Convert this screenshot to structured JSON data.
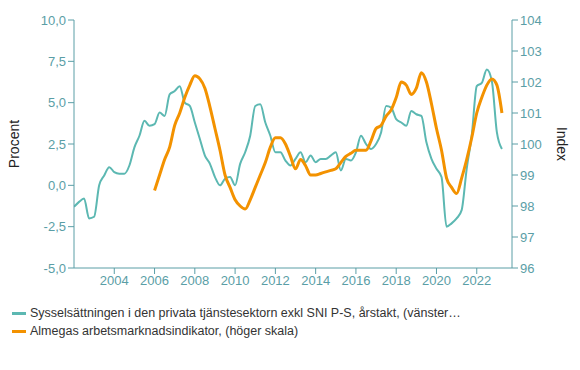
{
  "chart_data": {
    "type": "line",
    "ylabel": "Procent",
    "y2label": "Index",
    "x": [
      2002.0,
      2002.25,
      2002.5,
      2002.75,
      2003.0,
      2003.25,
      2003.5,
      2003.75,
      2004.0,
      2004.25,
      2004.5,
      2004.75,
      2005.0,
      2005.25,
      2005.5,
      2005.75,
      2006.0,
      2006.25,
      2006.5,
      2006.75,
      2007.0,
      2007.25,
      2007.5,
      2007.75,
      2008.0,
      2008.25,
      2008.5,
      2008.75,
      2009.0,
      2009.25,
      2009.5,
      2009.75,
      2010.0,
      2010.25,
      2010.5,
      2010.75,
      2011.0,
      2011.25,
      2011.5,
      2011.75,
      2012.0,
      2012.25,
      2012.5,
      2012.75,
      2013.0,
      2013.25,
      2013.5,
      2013.75,
      2014.0,
      2014.25,
      2014.5,
      2014.75,
      2015.0,
      2015.25,
      2015.5,
      2015.75,
      2016.0,
      2016.25,
      2016.5,
      2016.75,
      2017.0,
      2017.25,
      2017.5,
      2017.75,
      2018.0,
      2018.25,
      2018.5,
      2018.75,
      2019.0,
      2019.25,
      2019.5,
      2019.75,
      2020.0,
      2020.25,
      2020.5,
      2020.75,
      2021.0,
      2021.25,
      2021.5,
      2021.75,
      2022.0,
      2022.25,
      2022.5,
      2022.75,
      2023.0,
      2023.25
    ],
    "xlim": [
      2002,
      2023.75
    ],
    "xticks": [
      2004,
      2006,
      2008,
      2010,
      2012,
      2014,
      2016,
      2018,
      2020,
      2022
    ],
    "ylim": [
      -5,
      10
    ],
    "yticks": [
      {
        "value": -5,
        "label": "-5,0"
      },
      {
        "value": -2.5,
        "label": "-2,5"
      },
      {
        "value": 0,
        "label": "0,0"
      },
      {
        "value": 2.5,
        "label": "2,5"
      },
      {
        "value": 5,
        "label": "5,0"
      },
      {
        "value": 7.5,
        "label": "7,5"
      },
      {
        "value": 10,
        "label": "10,0"
      }
    ],
    "y2lim": [
      96,
      104
    ],
    "y2ticks": [
      96,
      97,
      98,
      99,
      100,
      101,
      102,
      103,
      104
    ],
    "grid": false,
    "legend": "bottom",
    "series": [
      {
        "name": "Sysselsättningen i den privata tjänstesektorn exkl SNI P-S, årstakt, (vänster…",
        "color": "#5cb8b2",
        "axis": "y",
        "values": [
          -1.3,
          -1.0,
          -0.8,
          -2.0,
          -1.9,
          0.0,
          0.6,
          1.1,
          0.8,
          0.7,
          0.7,
          1.2,
          2.3,
          3.0,
          3.9,
          3.6,
          3.7,
          4.4,
          4.2,
          5.5,
          5.7,
          6.0,
          5.0,
          4.8,
          3.8,
          2.8,
          1.8,
          1.3,
          0.5,
          0.0,
          0.4,
          0.5,
          0.0,
          1.3,
          2.0,
          3.0,
          4.8,
          4.9,
          3.8,
          3.0,
          2.0,
          2.0,
          1.5,
          1.2,
          1.6,
          2.0,
          1.4,
          1.8,
          1.4,
          1.6,
          1.6,
          1.8,
          2.0,
          0.9,
          1.6,
          1.5,
          2.0,
          3.0,
          2.5,
          2.2,
          2.5,
          3.2,
          4.8,
          4.7,
          4.0,
          3.8,
          3.6,
          4.5,
          4.3,
          4.2,
          2.6,
          1.6,
          1.0,
          0.5,
          -2.5,
          -2.3,
          -2.0,
          -1.5,
          1.0,
          3.0,
          6.0,
          6.2,
          7.0,
          6.3,
          3.2,
          2.2
        ]
      },
      {
        "name": "Almegas arbetsmarknadsindikator, (höger skala)",
        "color": "#f39200",
        "axis": "y2",
        "values": [
          null,
          null,
          null,
          null,
          null,
          null,
          null,
          null,
          null,
          null,
          null,
          null,
          null,
          null,
          null,
          null,
          98.5,
          99.0,
          99.5,
          99.9,
          100.6,
          101.0,
          101.5,
          101.9,
          102.2,
          102.1,
          101.8,
          101.2,
          100.5,
          99.8,
          99.0,
          98.6,
          98.2,
          98.0,
          97.9,
          98.2,
          98.6,
          99.0,
          99.4,
          99.9,
          100.2,
          100.2,
          100.0,
          99.6,
          99.2,
          99.5,
          99.3,
          99.0,
          99.0,
          99.05,
          99.1,
          99.15,
          99.2,
          99.4,
          99.6,
          99.7,
          99.8,
          99.8,
          99.8,
          100.1,
          100.5,
          100.6,
          100.9,
          101.1,
          101.5,
          102.0,
          101.9,
          101.6,
          101.8,
          102.3,
          102.0,
          101.3,
          100.5,
          99.8,
          98.9,
          98.6,
          98.4,
          98.9,
          99.5,
          100.2,
          101.0,
          101.5,
          101.9,
          102.1,
          101.9,
          101.0
        ]
      }
    ]
  }
}
